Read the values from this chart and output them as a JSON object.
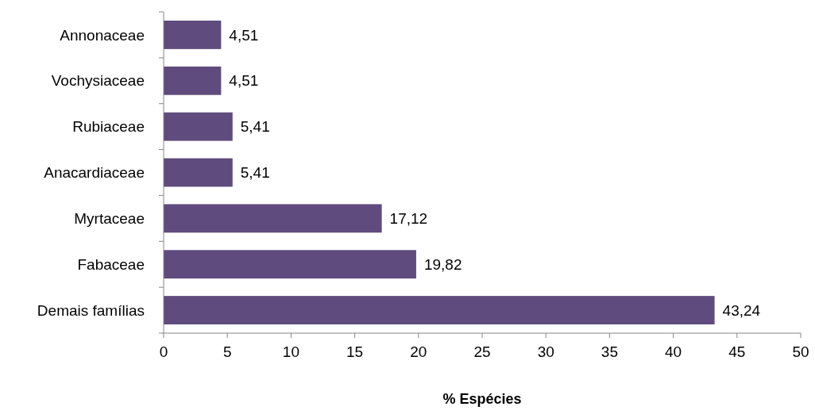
{
  "chart_data": {
    "type": "bar",
    "orientation": "horizontal",
    "xlabel": "% Espécies",
    "categories": [
      "Annonaceae",
      "Vochysiaceae",
      "Rubiaceae",
      "Anacardiaceae",
      "Myrtaceae",
      "Fabaceae",
      "Demais famílias"
    ],
    "values": [
      4.51,
      4.51,
      5.41,
      5.41,
      17.12,
      19.82,
      43.24
    ],
    "value_labels": [
      "4,51",
      "4,51",
      "5,41",
      "5,41",
      "17,12",
      "19,82",
      "43,24"
    ],
    "color": "#5f4b7d",
    "xlim": [
      0,
      50
    ],
    "xticks": [
      0,
      5,
      10,
      15,
      20,
      25,
      30,
      35,
      40,
      45,
      50
    ],
    "grid": false
  }
}
